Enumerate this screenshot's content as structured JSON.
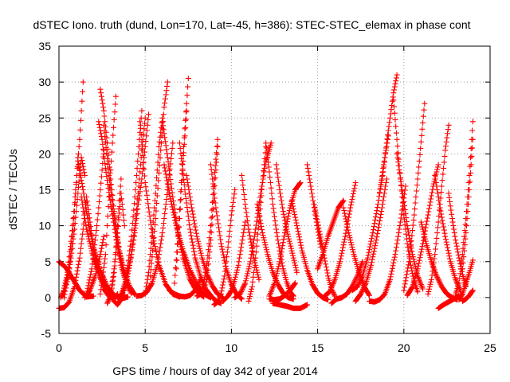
{
  "chart_data": {
    "type": "scatter",
    "title": "dSTEC Iono. truth (dund, Lon=170, Lat=-45, h=386): STEC-STEC_elemax in phase cont",
    "xlabel": "GPS time / hours of day 342 of year 2014",
    "ylabel": "dSTEC  / TECUs",
    "xlim": [
      0,
      25
    ],
    "ylim": [
      -5,
      35
    ],
    "xticks": [
      0,
      5,
      10,
      15,
      20,
      25
    ],
    "yticks": [
      -5,
      0,
      5,
      10,
      15,
      20,
      25,
      30,
      35
    ],
    "grid": true,
    "marker": "+",
    "color": "#ff0000",
    "series": [
      {
        "x": [
          0.0,
          0.4,
          0.8,
          1.2,
          1.6,
          2.0
        ],
        "y": [
          5.0,
          4.2,
          2.6,
          1.0,
          0.1,
          0.2
        ]
      },
      {
        "x": [
          0.0,
          0.3,
          0.6,
          0.9,
          1.2,
          1.4,
          1.6,
          1.8,
          2.0,
          2.3,
          2.6,
          2.9,
          3.2,
          3.4
        ],
        "y": [
          -1.5,
          -1.4,
          -0.6,
          1.5,
          5.5,
          9.5,
          14.0,
          10.5,
          7.0,
          3.5,
          1.2,
          0.2,
          -0.2,
          0.5
        ]
      },
      {
        "x": [
          0.1,
          0.3,
          0.5,
          0.7,
          0.9,
          1.1,
          1.3,
          1.5
        ],
        "y": [
          0.0,
          1.0,
          2.8,
          5.5,
          9.5,
          14.5,
          19.5,
          17.0
        ]
      },
      {
        "x": [
          0.2,
          0.5,
          0.8,
          1.0,
          1.2,
          1.4
        ],
        "y": [
          0.2,
          3.5,
          10.0,
          16.0,
          22.0,
          30.0
        ]
      },
      {
        "x": [
          0.3,
          0.6,
          0.9,
          1.1
        ],
        "y": [
          0.0,
          4.0,
          12.0,
          19.5
        ]
      },
      {
        "x": [
          1.1,
          1.4,
          1.7,
          2.0,
          2.4,
          2.8,
          3.2,
          3.6,
          4.0
        ],
        "y": [
          19.0,
          15.0,
          10.5,
          7.0,
          3.8,
          1.5,
          0.3,
          -0.2,
          0.1
        ]
      },
      {
        "x": [
          1.3,
          1.6,
          2.0,
          2.4,
          2.8,
          3.2,
          3.5,
          3.8
        ],
        "y": [
          14.0,
          9.5,
          5.5,
          2.8,
          1.0,
          0.2,
          0.1,
          0.4
        ]
      },
      {
        "x": [
          1.5,
          1.8,
          2.1,
          2.4,
          2.6
        ],
        "y": [
          0.0,
          1.0,
          3.0,
          6.0,
          8.5
        ]
      },
      {
        "x": [
          1.6,
          1.9,
          2.2,
          2.4,
          2.6
        ],
        "y": [
          0.5,
          4.0,
          10.0,
          15.0,
          20.5
        ]
      },
      {
        "x": [
          2.3,
          2.5,
          2.7,
          3.0,
          3.3,
          3.6,
          3.9,
          4.2
        ],
        "y": [
          24.5,
          22.0,
          18.0,
          13.0,
          8.5,
          4.5,
          2.0,
          0.6
        ]
      },
      {
        "x": [
          2.4,
          2.6,
          2.8,
          3.0,
          3.2,
          3.5,
          3.8
        ],
        "y": [
          29.0,
          26.0,
          21.5,
          16.5,
          12.0,
          6.5,
          3.0
        ]
      },
      {
        "x": [
          2.6,
          2.9,
          3.2,
          3.5,
          3.8,
          4.1,
          4.4
        ],
        "y": [
          24.0,
          17.0,
          11.0,
          6.5,
          3.5,
          1.5,
          0.4
        ]
      },
      {
        "x": [
          2.4,
          2.7,
          2.9,
          3.1,
          3.3
        ],
        "y": [
          0.5,
          6.0,
          14.0,
          21.5,
          28.0
        ]
      },
      {
        "x": [
          2.8,
          3.0,
          3.2,
          3.4,
          3.6,
          3.8
        ],
        "y": [
          -0.8,
          0.2,
          3.5,
          9.0,
          14.5,
          10.0
        ]
      },
      {
        "x": [
          3.0,
          3.2,
          3.4,
          3.5,
          3.6
        ],
        "y": [
          0.5,
          4.0,
          10.0,
          13.5,
          16.5
        ]
      },
      {
        "x": [
          3.2,
          3.4,
          3.6,
          3.8,
          4.0,
          4.2,
          4.4,
          4.6,
          4.8
        ],
        "y": [
          -0.5,
          -1.0,
          -0.2,
          1.5,
          4.5,
          8.5,
          14.0,
          20.0,
          26.0
        ]
      },
      {
        "x": [
          3.6,
          3.9,
          4.2,
          4.4,
          4.6,
          4.8,
          5.0
        ],
        "y": [
          0.3,
          2.5,
          6.0,
          10.0,
          14.5,
          20.5,
          25.0
        ]
      },
      {
        "x": [
          3.8,
          4.1,
          4.4,
          4.6,
          4.8,
          5.0,
          5.2
        ],
        "y": [
          1.0,
          4.5,
          9.0,
          13.0,
          16.5,
          21.0,
          25.5
        ]
      },
      {
        "x": [
          4.7,
          5.0,
          5.4,
          5.8,
          6.2,
          6.6,
          7.0
        ],
        "y": [
          24.5,
          16.0,
          9.0,
          4.5,
          1.8,
          0.5,
          0.1
        ]
      },
      {
        "x": [
          5.0,
          5.2,
          5.4,
          5.6,
          5.8,
          6.0
        ],
        "y": [
          0.5,
          3.5,
          8.5,
          14.5,
          21.0,
          25.0
        ]
      },
      {
        "x": [
          5.3,
          5.6,
          5.9,
          6.1,
          6.3
        ],
        "y": [
          3.0,
          11.0,
          20.5,
          26.5,
          30.0
        ]
      },
      {
        "x": [
          4.5,
          4.8,
          5.1,
          5.4,
          5.7,
          6.0,
          6.3,
          6.6
        ],
        "y": [
          0.2,
          0.3,
          0.8,
          2.0,
          4.5,
          9.0,
          15.0,
          21.5
        ]
      },
      {
        "x": [
          6.0,
          6.3,
          6.6,
          6.9,
          7.2,
          7.6,
          8.0,
          8.4
        ],
        "y": [
          24.5,
          19.5,
          14.0,
          9.0,
          5.5,
          2.5,
          0.8,
          0.1
        ]
      },
      {
        "x": [
          6.1,
          6.4,
          6.8,
          7.2,
          7.6,
          8.0,
          8.4,
          8.8
        ],
        "y": [
          18.5,
          14.5,
          10.0,
          6.5,
          3.8,
          1.8,
          0.5,
          0.0
        ]
      },
      {
        "x": [
          6.4,
          6.7,
          7.0,
          7.3,
          7.6,
          7.9,
          8.2
        ],
        "y": [
          1.0,
          0.5,
          0.2,
          0.1,
          0.3,
          1.0,
          2.5
        ]
      },
      {
        "x": [
          6.7,
          6.9,
          7.1,
          7.3,
          7.5
        ],
        "y": [
          2.0,
          8.5,
          16.0,
          23.5,
          30.5
        ]
      },
      {
        "x": [
          6.8,
          7.0,
          7.2,
          7.4
        ],
        "y": [
          4.0,
          11.0,
          19.0,
          26.0
        ]
      },
      {
        "x": [
          7.0,
          7.3,
          7.6,
          7.9,
          8.2,
          8.5,
          8.8,
          9.1,
          9.4
        ],
        "y": [
          21.5,
          15.0,
          9.5,
          5.5,
          3.0,
          1.2,
          0.3,
          -0.5,
          -0.8
        ]
      },
      {
        "x": [
          7.4,
          7.7,
          8.0,
          8.3,
          8.6,
          8.9,
          9.2,
          9.5
        ],
        "y": [
          17.0,
          12.5,
          8.5,
          5.5,
          3.2,
          1.6,
          0.5,
          0.0
        ]
      },
      {
        "x": [
          8.0,
          8.2,
          8.4,
          8.6,
          8.8,
          9.0,
          9.2
        ],
        "y": [
          0.2,
          0.5,
          2.0,
          5.0,
          10.0,
          16.5,
          22.0
        ]
      },
      {
        "x": [
          8.4,
          8.6,
          8.8,
          9.0,
          9.2
        ],
        "y": [
          0.5,
          3.0,
          8.0,
          14.5,
          21.0
        ]
      },
      {
        "x": [
          8.8,
          9.1,
          9.4,
          9.7,
          10.0,
          10.3,
          10.6
        ],
        "y": [
          18.5,
          12.5,
          7.5,
          4.0,
          1.8,
          0.5,
          -0.2
        ]
      },
      {
        "x": [
          9.0,
          9.2,
          9.4,
          9.6,
          9.8,
          10.0,
          10.2
        ],
        "y": [
          -1.0,
          -0.6,
          0.5,
          3.0,
          7.0,
          11.5,
          15.0
        ]
      },
      {
        "x": [
          9.5,
          9.8,
          10.0,
          10.2,
          10.4,
          10.6,
          10.8
        ],
        "y": [
          -0.5,
          0.2,
          1.0,
          2.5,
          4.5,
          7.5,
          10.5
        ]
      },
      {
        "x": [
          10.2,
          10.5,
          10.8,
          11.1,
          11.4,
          11.7,
          12.0,
          12.3
        ],
        "y": [
          0.0,
          0.5,
          2.0,
          5.0,
          9.5,
          14.5,
          19.0,
          21.5
        ]
      },
      {
        "x": [
          10.6,
          10.8,
          11.0,
          11.3,
          11.6
        ],
        "y": [
          17.0,
          13.0,
          9.5,
          5.5,
          2.5
        ]
      },
      {
        "x": [
          11.0,
          11.2,
          11.4,
          11.6,
          11.8,
          12.0
        ],
        "y": [
          -0.5,
          1.5,
          5.5,
          10.5,
          16.0,
          21.0
        ]
      },
      {
        "x": [
          12.0,
          12.2,
          12.4,
          12.6,
          12.8,
          13.0,
          13.2,
          13.4,
          13.6
        ],
        "y": [
          21.5,
          17.5,
          13.0,
          9.5,
          6.5,
          4.0,
          2.2,
          0.8,
          0.2
        ]
      },
      {
        "x": [
          12.2,
          12.5,
          12.8,
          13.1,
          13.4,
          13.7
        ],
        "y": [
          -0.2,
          -0.3,
          -0.2,
          0.3,
          1.0,
          2.0
        ]
      },
      {
        "x": [
          11.5,
          11.8,
          12.1,
          12.4,
          12.7,
          13.0,
          13.3,
          13.6
        ],
        "y": [
          13.0,
          9.0,
          6.0,
          3.5,
          1.8,
          0.6,
          0.0,
          -0.2
        ]
      },
      {
        "x": [
          12.6,
          12.8,
          13.0,
          13.2,
          13.4,
          13.6,
          13.8
        ],
        "y": [
          18.5,
          15.0,
          12.0,
          9.5,
          7.5,
          5.5,
          3.5
        ]
      },
      {
        "x": [
          12.2,
          12.5,
          12.8,
          13.1,
          13.4,
          13.7,
          14.0
        ],
        "y": [
          0.2,
          2.0,
          5.0,
          9.0,
          12.5,
          15.0,
          16.0
        ]
      },
      {
        "x": [
          12.4,
          12.8,
          13.2,
          13.6,
          14.0,
          14.4
        ],
        "y": [
          -0.8,
          -1.0,
          -1.2,
          -1.5,
          -1.5,
          -1.0
        ]
      },
      {
        "x": [
          13.5,
          13.8,
          14.1,
          14.4,
          14.7,
          15.0,
          15.3,
          15.6
        ],
        "y": [
          13.5,
          10.0,
          6.5,
          3.8,
          1.8,
          0.6,
          0.0,
          -0.3
        ]
      },
      {
        "x": [
          14.4,
          14.6,
          14.8,
          15.0,
          15.2
        ],
        "y": [
          18.5,
          15.5,
          12.5,
          9.5,
          7.0
        ]
      },
      {
        "x": [
          14.8,
          15.0,
          15.2,
          15.4,
          15.6,
          15.8,
          16.0
        ],
        "y": [
          13.0,
          10.5,
          8.0,
          5.5,
          3.0,
          1.2,
          0.2
        ]
      },
      {
        "x": [
          15.0,
          15.3,
          15.6,
          15.9,
          16.2,
          16.5
        ],
        "y": [
          4.0,
          6.0,
          8.5,
          10.5,
          12.5,
          13.5
        ]
      },
      {
        "x": [
          15.4,
          15.7,
          16.0,
          16.3,
          16.6,
          16.9,
          17.2
        ],
        "y": [
          0.2,
          0.8,
          2.5,
          5.0,
          8.5,
          12.5,
          16.0
        ]
      },
      {
        "x": [
          15.8,
          16.1,
          16.4,
          16.7,
          17.0,
          17.3,
          17.6
        ],
        "y": [
          -0.8,
          -0.2,
          0.0,
          0.5,
          1.5,
          3.0,
          5.0
        ]
      },
      {
        "x": [
          16.5,
          16.8,
          17.1,
          17.4,
          17.7,
          18.0
        ],
        "y": [
          12.5,
          9.0,
          6.0,
          3.5,
          1.5,
          0.3
        ]
      },
      {
        "x": [
          17.0,
          17.3,
          17.6,
          17.9,
          18.2,
          18.5,
          18.8,
          19.1
        ],
        "y": [
          1.0,
          1.5,
          3.0,
          5.5,
          9.0,
          13.0,
          18.0,
          22.5
        ]
      },
      {
        "x": [
          17.2,
          17.5,
          17.8,
          18.1,
          18.4,
          18.7,
          19.0
        ],
        "y": [
          -0.5,
          0.5,
          2.0,
          4.5,
          8.0,
          12.0,
          16.5
        ]
      },
      {
        "x": [
          18.6,
          18.8,
          19.0,
          19.2,
          19.4,
          19.6
        ],
        "y": [
          14.5,
          17.5,
          21.5,
          25.0,
          28.5,
          31.0
        ]
      },
      {
        "x": [
          18.0,
          18.3,
          18.6,
          18.9,
          19.2,
          19.5,
          19.8,
          20.1
        ],
        "y": [
          -0.5,
          -0.6,
          -0.3,
          0.5,
          2.5,
          6.0,
          10.5,
          15.5
        ]
      },
      {
        "x": [
          19.4,
          19.6,
          19.8,
          20.0,
          20.2,
          20.4,
          20.6,
          20.8
        ],
        "y": [
          27.5,
          22.0,
          16.5,
          11.5,
          7.5,
          4.5,
          2.2,
          0.8
        ]
      },
      {
        "x": [
          19.6,
          19.9,
          20.2,
          20.5,
          20.8,
          21.1
        ],
        "y": [
          20.0,
          15.0,
          10.0,
          6.0,
          3.0,
          1.2
        ]
      },
      {
        "x": [
          20.0,
          20.3,
          20.6,
          20.9,
          21.2
        ],
        "y": [
          1.0,
          5.0,
          11.5,
          19.0,
          27.0
        ]
      },
      {
        "x": [
          20.2,
          20.5,
          20.8,
          21.1,
          21.4,
          21.7,
          22.0
        ],
        "y": [
          0.3,
          1.5,
          4.0,
          7.5,
          11.5,
          15.5,
          18.5
        ]
      },
      {
        "x": [
          21.0,
          21.3,
          21.6,
          21.9,
          22.2,
          22.5,
          22.8,
          23.1
        ],
        "y": [
          10.5,
          7.5,
          5.0,
          3.0,
          1.5,
          0.5,
          0.0,
          -0.3
        ]
      },
      {
        "x": [
          21.4,
          21.6,
          21.8,
          22.0,
          22.2,
          22.4,
          22.6
        ],
        "y": [
          0.5,
          2.5,
          6.0,
          10.5,
          15.5,
          20.5,
          24.0
        ]
      },
      {
        "x": [
          21.8,
          22.1,
          22.4,
          22.7,
          23.0,
          23.3
        ],
        "y": [
          17.0,
          12.5,
          8.5,
          5.0,
          2.5,
          0.8
        ]
      },
      {
        "x": [
          22.0,
          22.3,
          22.6,
          22.9,
          23.2
        ],
        "y": [
          -1.5,
          -1.0,
          -0.6,
          -0.2,
          0.3
        ]
      },
      {
        "x": [
          22.6,
          22.8,
          23.0,
          23.2,
          23.4,
          23.6
        ],
        "y": [
          14.5,
          11.0,
          8.0,
          5.5,
          3.2,
          1.6
        ]
      },
      {
        "x": [
          23.0,
          23.2,
          23.4,
          23.6,
          23.8,
          24.0
        ],
        "y": [
          0.5,
          2.0,
          6.0,
          11.0,
          17.0,
          24.5
        ]
      },
      {
        "x": [
          23.2,
          23.4,
          23.6,
          23.8,
          24.0
        ],
        "y": [
          -0.3,
          0.5,
          2.0,
          3.5,
          5.2
        ]
      },
      {
        "x": [
          23.4,
          23.6,
          23.8,
          24.0
        ],
        "y": [
          4.0,
          9.0,
          15.0,
          22.0
        ]
      },
      {
        "x": [
          23.4,
          23.6,
          23.8,
          24.0
        ],
        "y": [
          -0.5,
          -0.2,
          0.3,
          1.0
        ]
      }
    ]
  }
}
